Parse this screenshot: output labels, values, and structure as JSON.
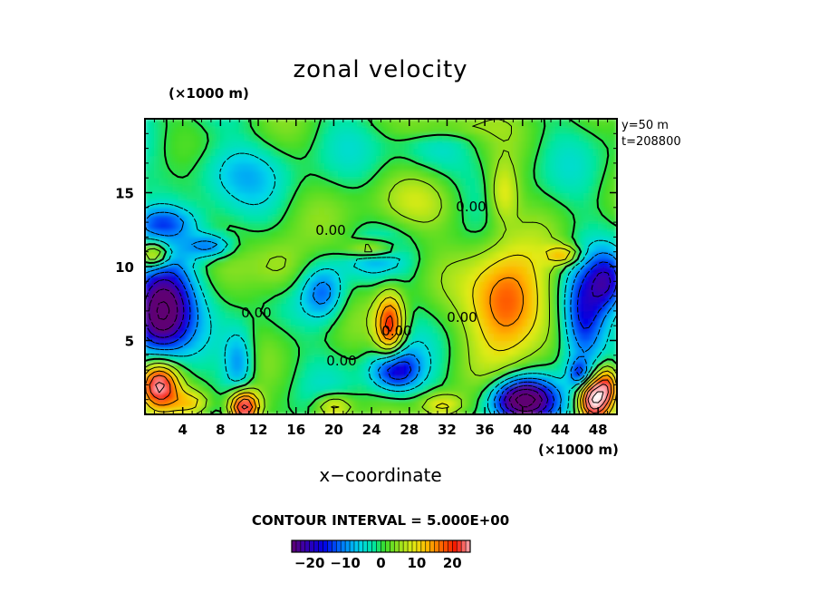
{
  "chart_data": {
    "type": "heatmap",
    "title": "zonal velocity",
    "xlabel": "x−coordinate",
    "x_unit": "(×1000 m)",
    "y_unit": "(×1000 m)",
    "xlim": [
      0,
      50
    ],
    "ylim": [
      0,
      20
    ],
    "x_ticks": [
      4,
      8,
      12,
      16,
      20,
      24,
      28,
      32,
      36,
      40,
      44,
      48
    ],
    "y_ticks": [
      5,
      10,
      15
    ],
    "x_tick_labels": [
      "4",
      "8",
      "12",
      "16",
      "20",
      "24",
      "28",
      "32",
      "36",
      "40",
      "44",
      "48"
    ],
    "y_tick_labels": [
      "5",
      "10",
      "15"
    ],
    "meta": [
      "y=50  m",
      "t=208800"
    ],
    "contour_interval_text": "CONTOUR INTERVAL = 5.000E+00",
    "contour_interval": 5,
    "color_range": [
      -25,
      25
    ],
    "colorbar_ticks": [
      -20,
      -10,
      0,
      10,
      20
    ],
    "colorbar_labels": [
      "−20",
      "−10",
      "0",
      "10",
      "20"
    ],
    "contour_labels": [
      "0.00",
      "0.00",
      "0.00",
      "0.00",
      "0.00",
      "0.00"
    ],
    "background_value": 0,
    "features": [
      {
        "x": 1.5,
        "y": 6.5,
        "value": -24,
        "rx": 3.0,
        "ry": 2.4
      },
      {
        "x": 2.0,
        "y": 8.5,
        "value": -14,
        "rx": 3.5,
        "ry": 2.5
      },
      {
        "x": 7.0,
        "y": 11.4,
        "value": -14,
        "rx": 2.5,
        "ry": 0.8
      },
      {
        "x": 2.0,
        "y": 13.0,
        "value": -10,
        "rx": 3.5,
        "ry": 1.0
      },
      {
        "x": 10.0,
        "y": 3.5,
        "value": -12,
        "rx": 1.6,
        "ry": 2.2
      },
      {
        "x": 19.0,
        "y": 8.2,
        "value": -12,
        "rx": 2.2,
        "ry": 1.8
      },
      {
        "x": 26.5,
        "y": 3.0,
        "value": -20,
        "rx": 2.5,
        "ry": 1.4
      },
      {
        "x": 40.0,
        "y": 1.0,
        "value": -32,
        "rx": 3.2,
        "ry": 1.4
      },
      {
        "x": 46.5,
        "y": 6.5,
        "value": -20,
        "rx": 2.4,
        "ry": 3.5
      },
      {
        "x": 49.0,
        "y": 9.0,
        "value": -14,
        "rx": 1.8,
        "ry": 1.8
      },
      {
        "x": 46.0,
        "y": 2.8,
        "value": -14,
        "rx": 1.0,
        "ry": 0.8
      },
      {
        "x": 8.5,
        "y": 16.5,
        "value": -6,
        "rx": 6.0,
        "ry": 2.0
      },
      {
        "x": 30.0,
        "y": 17.5,
        "value": -5,
        "rx": 4.0,
        "ry": 1.5
      },
      {
        "x": 24.0,
        "y": 10.5,
        "value": -6,
        "rx": 3.5,
        "ry": 1.2
      },
      {
        "x": 1.5,
        "y": 2.0,
        "value": 24,
        "rx": 2.0,
        "ry": 1.5
      },
      {
        "x": 1.0,
        "y": 10.8,
        "value": 18,
        "rx": 1.6,
        "ry": 0.8
      },
      {
        "x": 10.5,
        "y": 0.5,
        "value": 30,
        "rx": 1.6,
        "ry": 1.1
      },
      {
        "x": 26.0,
        "y": 6.0,
        "value": 22,
        "rx": 1.5,
        "ry": 2.2
      },
      {
        "x": 38.5,
        "y": 7.5,
        "value": 22,
        "rx": 4.0,
        "ry": 3.5
      },
      {
        "x": 47.5,
        "y": 1.0,
        "value": 30,
        "rx": 1.5,
        "ry": 1.3
      },
      {
        "x": 24.0,
        "y": 11.2,
        "value": 16,
        "rx": 2.6,
        "ry": 0.5
      },
      {
        "x": 49.0,
        "y": 2.0,
        "value": 20,
        "rx": 1.2,
        "ry": 1.3
      },
      {
        "x": 44.5,
        "y": 10.8,
        "value": 14,
        "rx": 1.8,
        "ry": 0.6
      },
      {
        "x": 20.0,
        "y": 0.5,
        "value": 14,
        "rx": 2.0,
        "ry": 0.8
      },
      {
        "x": 31.5,
        "y": 0.6,
        "value": 12,
        "rx": 2.2,
        "ry": 0.8
      },
      {
        "x": 14.5,
        "y": 9.8,
        "value": 8,
        "rx": 3.0,
        "ry": 2.0
      },
      {
        "x": 29.0,
        "y": 14.0,
        "value": 6,
        "rx": 6.0,
        "ry": 1.8
      },
      {
        "x": 38.0,
        "y": 15.0,
        "value": 10,
        "rx": 1.6,
        "ry": 2.0
      },
      {
        "x": 31.5,
        "y": 19.6,
        "value": 8,
        "rx": 5.0,
        "ry": 0.8
      },
      {
        "x": 5.0,
        "y": 0.8,
        "value": 10,
        "rx": 2.0,
        "ry": 0.8
      }
    ]
  }
}
